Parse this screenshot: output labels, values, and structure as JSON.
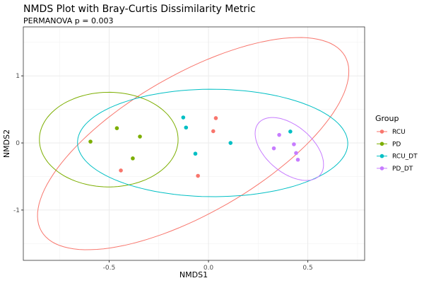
{
  "chart_data": {
    "type": "scatter",
    "title": "NMDS Plot with Bray-Curtis Dissimilarity Metric",
    "subtitle": "PERMANOVA p = 0.003",
    "xlabel": "NMDS1",
    "ylabel": "NMDS2",
    "xlim": [
      -0.932,
      0.786
    ],
    "ylim": [
      -1.75,
      1.73
    ],
    "xticks": [
      {
        "v": -0.5,
        "label": "-0.5"
      },
      {
        "v": 0,
        "label": "0.0"
      },
      {
        "v": 0.5,
        "label": "0.5"
      }
    ],
    "yticks": [
      {
        "v": -1,
        "label": "-1"
      },
      {
        "v": 0,
        "label": "0"
      },
      {
        "v": 1,
        "label": "1"
      }
    ],
    "grid": true,
    "legend": {
      "title": "Group",
      "position": "right"
    },
    "series": [
      {
        "name": "RCU",
        "color": "#F8766D",
        "points": [
          [
            -0.441,
            -0.41
          ],
          [
            0.037,
            0.37
          ],
          [
            0.024,
            0.175
          ],
          [
            -0.053,
            -0.49
          ]
        ],
        "ellipse": {
          "center": [
            -0.077,
            -0.01
          ],
          "u": [
            0.764,
            1.305
          ],
          "v": [
            0.174,
            -0.894
          ]
        }
      },
      {
        "name": "PD",
        "color": "#7CAE00",
        "points": [
          [
            -0.594,
            0.02
          ],
          [
            -0.461,
            0.22
          ],
          [
            -0.345,
            0.095
          ],
          [
            -0.381,
            -0.23
          ]
        ],
        "ellipse": {
          "center": [
            -0.502,
            0.05
          ],
          "u": [
            0.349,
            0.02
          ],
          "v": [
            -0.01,
            0.705
          ]
        }
      },
      {
        "name": "RCU_DT",
        "color": "#00BFC4",
        "points": [
          [
            -0.127,
            0.38
          ],
          [
            -0.113,
            0.23
          ],
          [
            -0.066,
            -0.16
          ],
          [
            0.111,
            0.0
          ],
          [
            0.412,
            0.17
          ]
        ],
        "ellipse": {
          "center": [
            0.021,
            0.0
          ],
          "u": [
            0.68,
            -0.03
          ],
          "v": [
            0.02,
            0.8
          ]
        }
      },
      {
        "name": "PD_DT",
        "color": "#C77CFF",
        "points": [
          [
            0.356,
            0.12
          ],
          [
            0.43,
            -0.02
          ],
          [
            0.329,
            -0.08
          ],
          [
            0.441,
            -0.15
          ],
          [
            0.45,
            -0.25
          ]
        ],
        "ellipse": {
          "center": [
            0.407,
            -0.09
          ],
          "u": [
            0.155,
            -0.386
          ],
          "v": [
            -0.075,
            -0.266
          ]
        }
      }
    ]
  }
}
